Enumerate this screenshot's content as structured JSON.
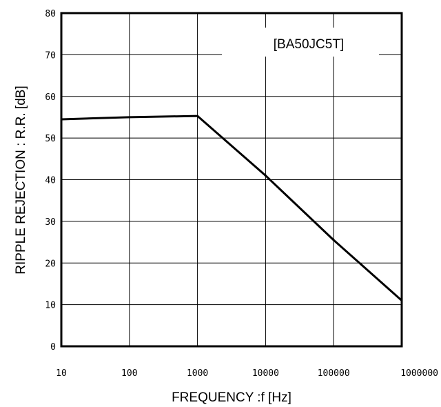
{
  "chart_data": {
    "type": "line",
    "title": "",
    "annotation": "[BA50JC5T]",
    "xlabel": "FREQUENCY  :f [Hz]",
    "ylabel": "RIPPLE REJECTION : R.R. [dB]",
    "xscale": "log",
    "xlim": [
      10,
      1000000
    ],
    "ylim": [
      0,
      80
    ],
    "x_ticks": [
      "10",
      "100",
      "1000",
      "10000",
      "100000",
      "1000000"
    ],
    "y_ticks": [
      "0",
      "10",
      "20",
      "30",
      "40",
      "50",
      "60",
      "70",
      "80"
    ],
    "grid": true,
    "series": [
      {
        "x": [
          10,
          100,
          1000,
          10000,
          100000,
          1000000
        ],
        "y": [
          54.5,
          55,
          55.3,
          41,
          25.5,
          11
        ]
      }
    ]
  }
}
